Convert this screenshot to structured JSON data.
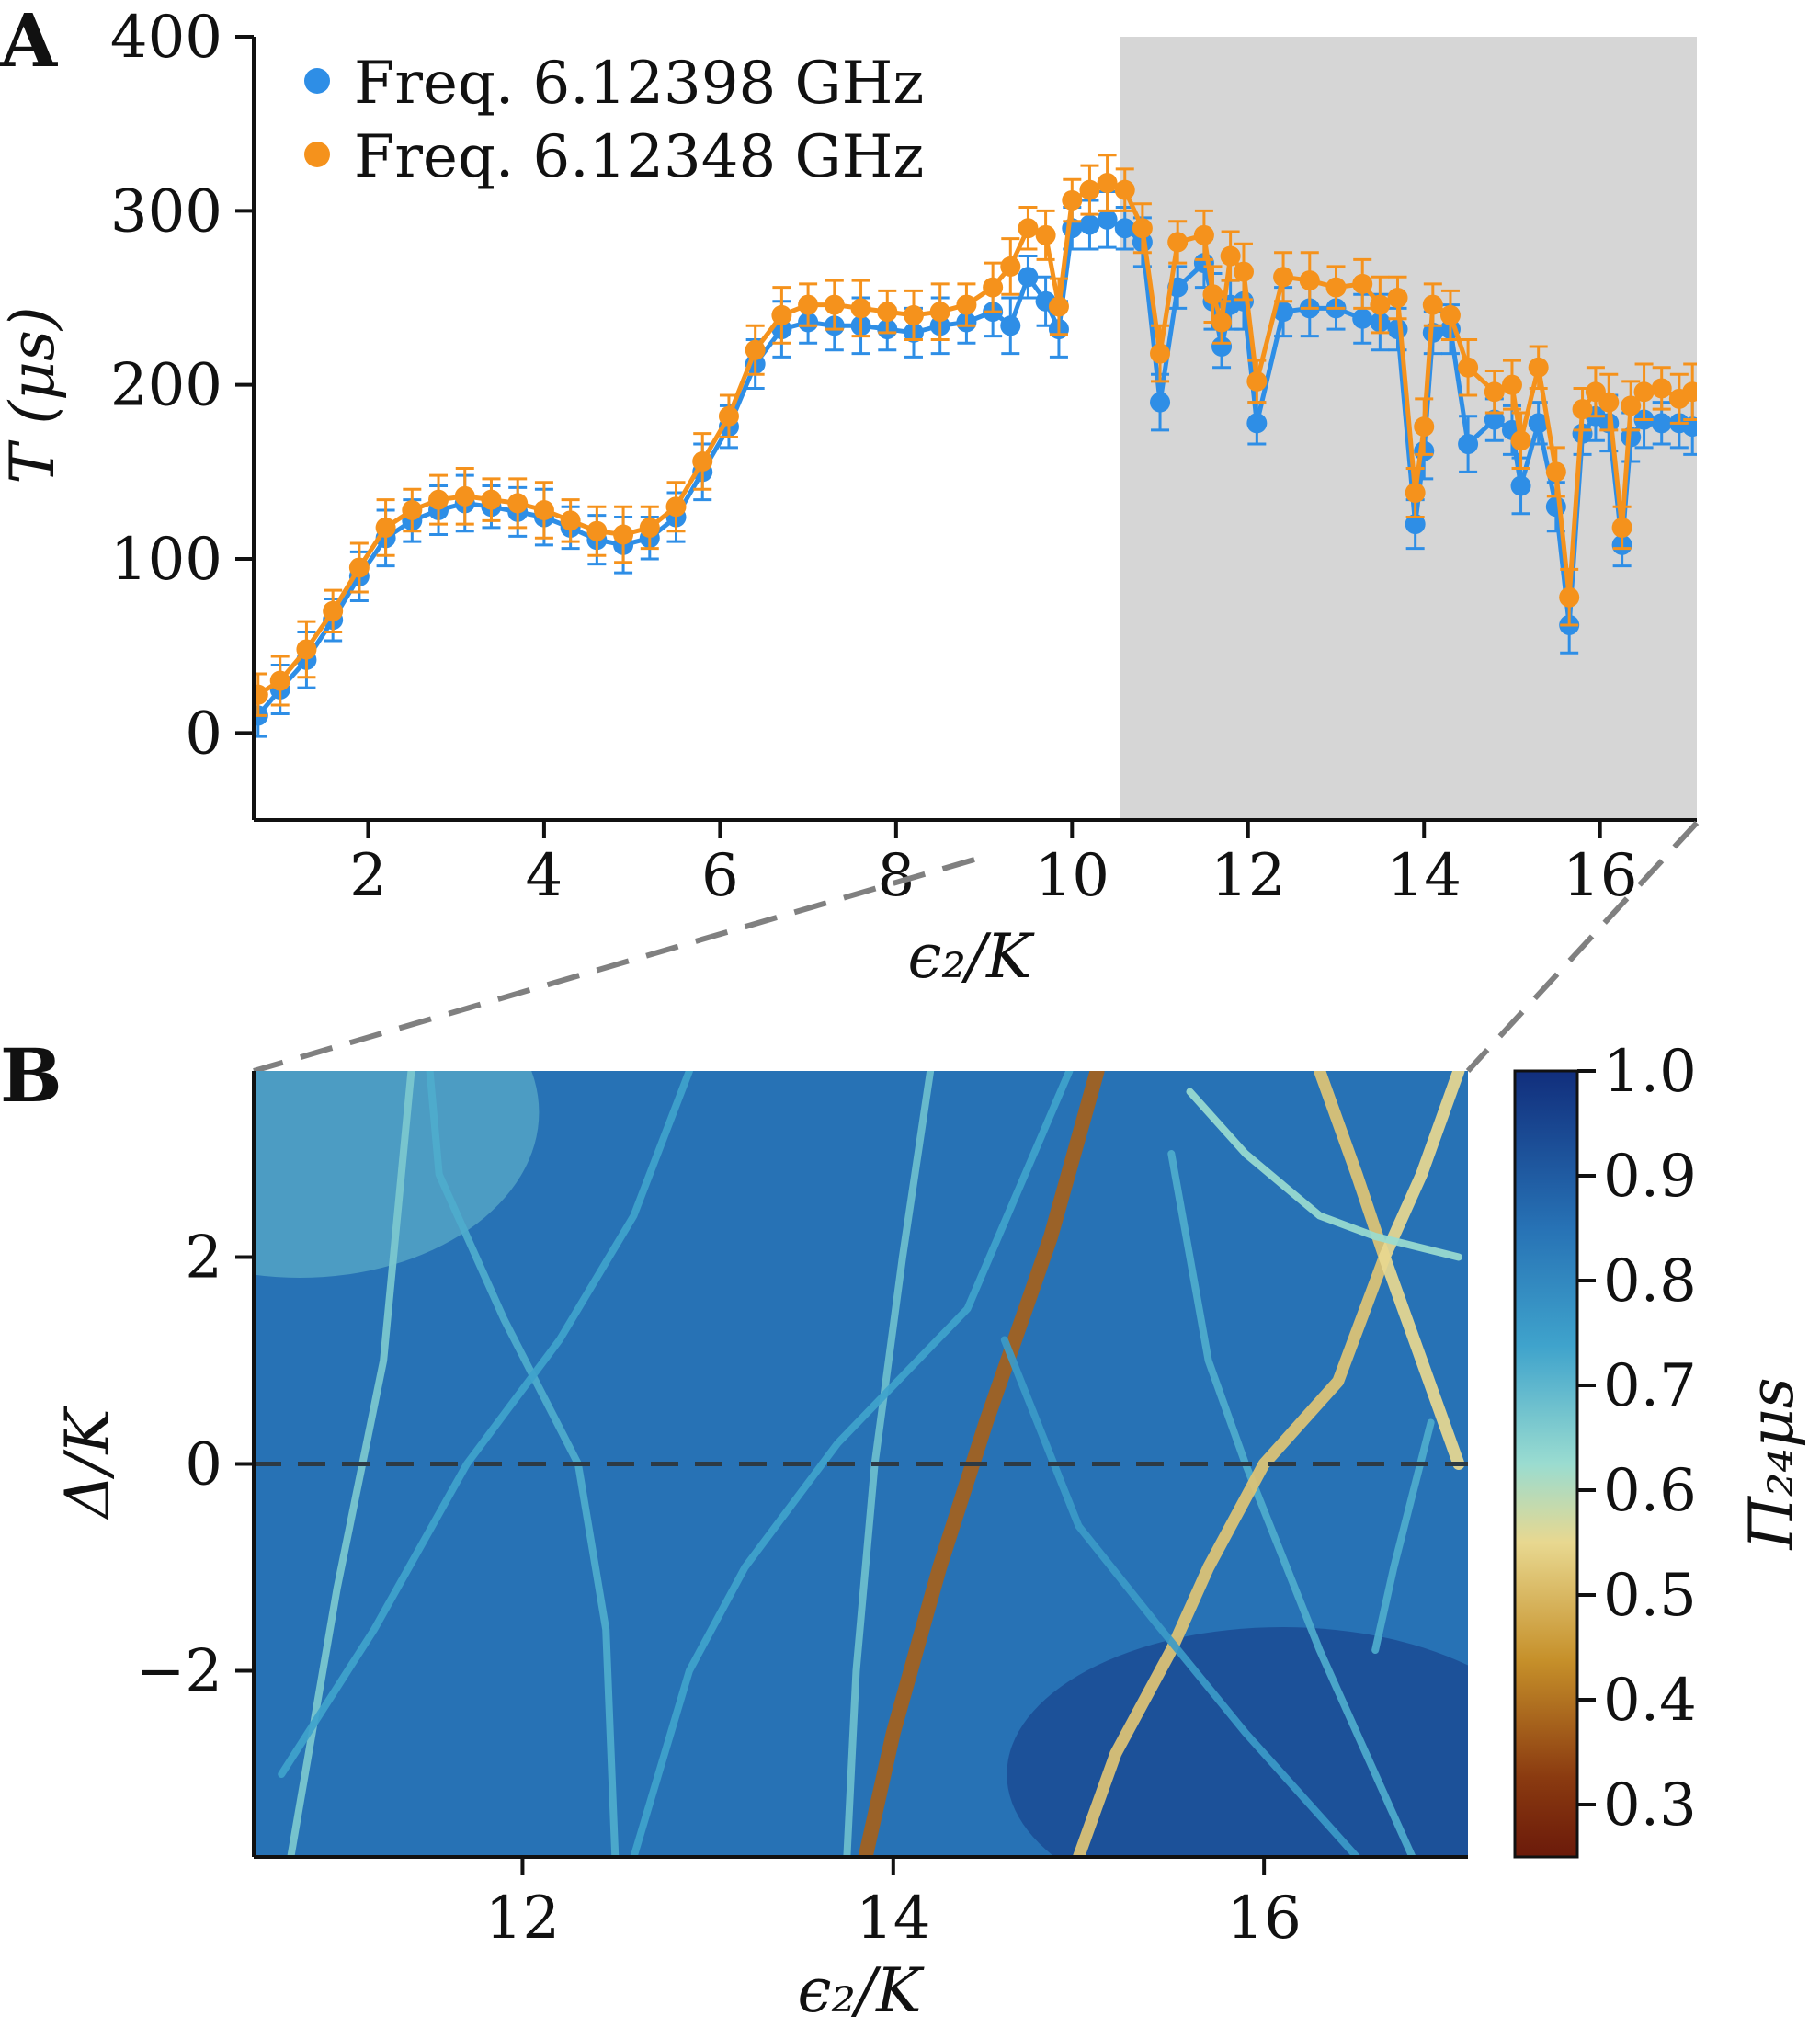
{
  "panels": {
    "a": "A",
    "b": "B"
  },
  "chart_data": [
    {
      "type": "scatter",
      "panel": "A",
      "xlabel": "ϵ₂/K",
      "ylabel": "T (μs)",
      "xlim": [
        0.7,
        17.1
      ],
      "ylim": [
        -50,
        400
      ],
      "xticks": [
        2,
        4,
        6,
        8,
        10,
        12,
        14,
        16
      ],
      "yticks": [
        0,
        100,
        200,
        300,
        400
      ],
      "xtick_labels": [
        "2",
        "4",
        "6",
        "8",
        "10",
        "12",
        "14",
        "16"
      ],
      "ytick_labels": [
        "0",
        "100",
        "200",
        "300",
        "400"
      ],
      "shaded_region": [
        10.55,
        17.1
      ],
      "legend": [
        "Freq. 6.12398 GHz",
        "Freq. 6.12348 GHz"
      ],
      "legend_position": "top-left",
      "colors": [
        "#2e8ee6",
        "#f5921c"
      ],
      "series": [
        {
          "name": "Freq. 6.12398 GHz",
          "x": [
            0.75,
            1.0,
            1.3,
            1.6,
            1.9,
            2.2,
            2.5,
            2.8,
            3.1,
            3.4,
            3.7,
            4.0,
            4.3,
            4.6,
            4.9,
            5.2,
            5.5,
            5.8,
            6.1,
            6.4,
            6.7,
            7.0,
            7.3,
            7.6,
            7.9,
            8.2,
            8.5,
            8.8,
            9.1,
            9.3,
            9.5,
            9.7,
            9.85,
            10.0,
            10.2,
            10.4,
            10.6,
            10.8,
            11.0,
            11.2,
            11.5,
            11.6,
            11.7,
            11.8,
            11.95,
            12.1,
            12.4,
            12.7,
            13.0,
            13.3,
            13.5,
            13.7,
            13.9,
            14.0,
            14.1,
            14.3,
            14.5,
            14.8,
            15.0,
            15.1,
            15.3,
            15.5,
            15.65,
            15.8,
            15.95,
            16.1,
            16.25,
            16.35,
            16.5,
            16.7,
            16.9,
            17.05
          ],
          "y": [
            10,
            25,
            42,
            65,
            90,
            112,
            122,
            128,
            132,
            130,
            127,
            124,
            118,
            111,
            108,
            112,
            124,
            150,
            176,
            212,
            232,
            236,
            234,
            234,
            232,
            230,
            234,
            236,
            242,
            234,
            262,
            248,
            232,
            290,
            292,
            295,
            290,
            282,
            190,
            256,
            270,
            248,
            222,
            246,
            248,
            178,
            242,
            244,
            244,
            238,
            236,
            232,
            120,
            162,
            230,
            232,
            166,
            180,
            174,
            142,
            178,
            130,
            62,
            172,
            182,
            178,
            108,
            170,
            180,
            178,
            178,
            176
          ]
        },
        {
          "name": "Freq. 6.12348 GHz",
          "x": [
            0.75,
            1.0,
            1.3,
            1.6,
            1.9,
            2.2,
            2.5,
            2.8,
            3.1,
            3.4,
            3.7,
            4.0,
            4.3,
            4.6,
            4.9,
            5.2,
            5.5,
            5.8,
            6.1,
            6.4,
            6.7,
            7.0,
            7.3,
            7.6,
            7.9,
            8.2,
            8.5,
            8.8,
            9.1,
            9.3,
            9.5,
            9.7,
            9.85,
            10.0,
            10.2,
            10.4,
            10.6,
            10.8,
            11.0,
            11.2,
            11.5,
            11.6,
            11.7,
            11.8,
            11.95,
            12.1,
            12.4,
            12.7,
            13.0,
            13.3,
            13.5,
            13.7,
            13.9,
            14.0,
            14.1,
            14.3,
            14.5,
            14.8,
            15.0,
            15.1,
            15.3,
            15.5,
            15.65,
            15.8,
            15.95,
            16.1,
            16.25,
            16.35,
            16.5,
            16.7,
            16.9,
            17.05
          ],
          "y": [
            22,
            30,
            48,
            70,
            95,
            118,
            128,
            134,
            136,
            134,
            132,
            128,
            122,
            116,
            114,
            118,
            130,
            156,
            182,
            220,
            240,
            246,
            246,
            244,
            242,
            240,
            242,
            246,
            256,
            268,
            290,
            286,
            245,
            306,
            312,
            316,
            312,
            290,
            218,
            282,
            286,
            252,
            236,
            274,
            265,
            202,
            262,
            260,
            256,
            258,
            246,
            250,
            138,
            176,
            246,
            240,
            210,
            196,
            200,
            168,
            210,
            150,
            78,
            186,
            196,
            190,
            118,
            188,
            196,
            198,
            192,
            196
          ]
        }
      ]
    },
    {
      "type": "heatmap",
      "panel": "B",
      "xlabel": "ϵ₂/K",
      "ylabel": "Δ/K",
      "xlim": [
        10.55,
        17.1
      ],
      "ylim": [
        -3.8,
        3.8
      ],
      "xticks": [
        12,
        14,
        16
      ],
      "yticks": [
        -2,
        0,
        2
      ],
      "xtick_labels": [
        "12",
        "14",
        "16"
      ],
      "ytick_labels": [
        "−2",
        "0",
        "2"
      ],
      "dashed_line_y": 0,
      "colorbar": {
        "label": "Π₂₄μs",
        "range": [
          0.25,
          1.0
        ],
        "ticks": [
          0.3,
          0.4,
          0.5,
          0.6,
          0.7,
          0.8,
          0.9,
          1.0
        ],
        "tick_labels": [
          "0.3",
          "0.4",
          "0.5",
          "0.6",
          "0.7",
          "0.8",
          "0.9",
          "1.0"
        ]
      },
      "background_value": 0.85,
      "resonance_lines": [
        {
          "points": [
            [
              11.4,
              3.8
            ],
            [
              11.25,
              1.0
            ],
            [
              11.0,
              -1.2
            ],
            [
              10.75,
              -3.8
            ]
          ],
          "value": 0.66
        },
        {
          "points": [
            [
              11.5,
              3.8
            ],
            [
              11.55,
              2.8
            ],
            [
              11.9,
              1.4
            ],
            [
              12.3,
              0.0
            ],
            [
              12.45,
              -1.6
            ],
            [
              12.5,
              -3.8
            ]
          ],
          "value": 0.72
        },
        {
          "points": [
            [
              12.9,
              3.8
            ],
            [
              12.6,
              2.4
            ],
            [
              12.2,
              1.2
            ],
            [
              11.7,
              0.0
            ],
            [
              11.2,
              -1.6
            ],
            [
              10.7,
              -3.0
            ]
          ],
          "value": 0.74
        },
        {
          "points": [
            [
              14.2,
              3.8
            ],
            [
              14.05,
              2.0
            ],
            [
              13.9,
              0.0
            ],
            [
              13.8,
              -2.0
            ],
            [
              13.75,
              -3.8
            ]
          ],
          "value": 0.68
        },
        {
          "points": [
            [
              15.1,
              3.8
            ],
            [
              14.85,
              2.2
            ],
            [
              14.5,
              0.4
            ],
            [
              14.25,
              -1.0
            ],
            [
              14.0,
              -2.6
            ],
            [
              13.85,
              -3.8
            ]
          ],
          "value": 0.38
        },
        {
          "points": [
            [
              14.95,
              3.8
            ],
            [
              14.4,
              1.5
            ],
            [
              13.7,
              0.2
            ],
            [
              13.2,
              -1.0
            ],
            [
              12.9,
              -2.0
            ],
            [
              12.6,
              -3.8
            ]
          ],
          "value": 0.74
        },
        {
          "points": [
            [
              15.5,
              3.0
            ],
            [
              15.7,
              1.0
            ],
            [
              15.9,
              0.0
            ],
            [
              16.3,
              -1.8
            ],
            [
              16.6,
              -3.0
            ],
            [
              16.8,
              -3.8
            ]
          ],
          "value": 0.72
        },
        {
          "points": [
            [
              16.3,
              3.8
            ],
            [
              16.5,
              2.8
            ],
            [
              16.65,
              2.0
            ],
            [
              16.4,
              0.8
            ],
            [
              16.0,
              0.0
            ],
            [
              15.7,
              -1.0
            ],
            [
              15.5,
              -1.8
            ],
            [
              15.2,
              -2.8
            ],
            [
              15.0,
              -3.8
            ]
          ],
          "value": 0.52
        },
        {
          "points": [
            [
              17.05,
              3.8
            ],
            [
              16.85,
              2.8
            ],
            [
              16.65,
              2.0
            ],
            [
              16.85,
              1.0
            ],
            [
              17.05,
              0.0
            ]
          ],
          "value": 0.55
        },
        {
          "points": [
            [
              15.6,
              3.6
            ],
            [
              15.9,
              3.0
            ],
            [
              16.3,
              2.4
            ],
            [
              16.6,
              2.2
            ],
            [
              17.05,
              2.0
            ]
          ],
          "value": 0.62
        },
        {
          "points": [
            [
              14.6,
              1.2
            ],
            [
              15.0,
              -0.6
            ],
            [
              15.4,
              -1.5
            ],
            [
              15.9,
              -2.6
            ],
            [
              16.5,
              -3.8
            ]
          ],
          "value": 0.76
        },
        {
          "points": [
            [
              16.9,
              0.4
            ],
            [
              16.7,
              -1.0
            ],
            [
              16.6,
              -1.8
            ]
          ],
          "value": 0.72
        }
      ]
    }
  ]
}
